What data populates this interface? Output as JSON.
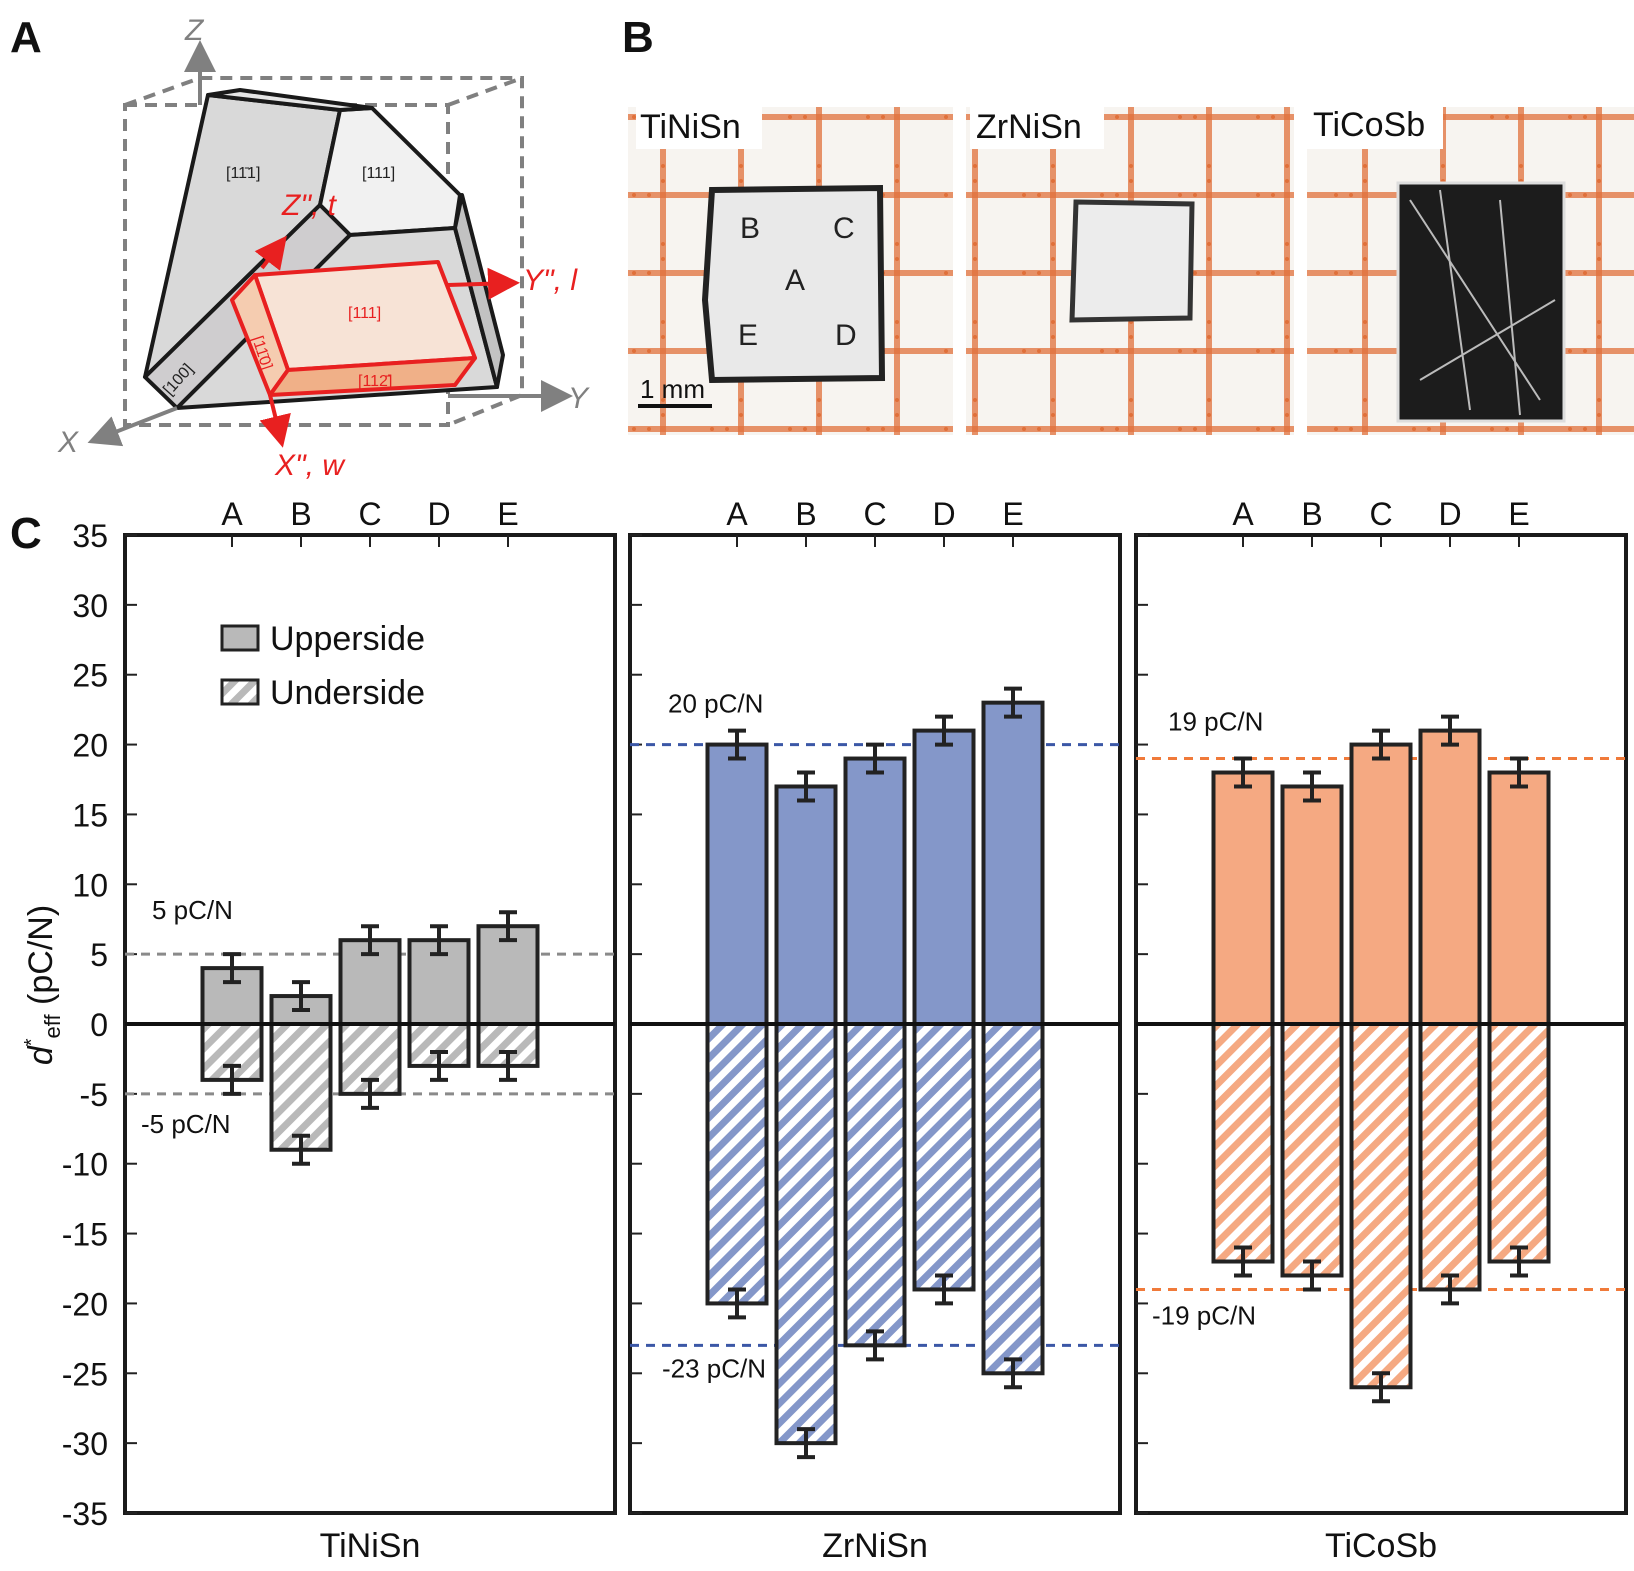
{
  "panels": {
    "a": "A",
    "b": "B",
    "c": "C"
  },
  "panel_a": {
    "axes": {
      "z": "Z",
      "y": "Y",
      "x": "X"
    },
    "rotated_axes": {
      "z": "Z\", t",
      "y": "Y\", l",
      "x": "X\", w"
    },
    "faces": {
      "left": "[11̄1]",
      "right": "[111]",
      "edge": "[100]",
      "sample_top": "[111]",
      "sample_side": "[11̄0]",
      "sample_bottom": "[112̄]"
    }
  },
  "panel_b": {
    "samples": [
      {
        "name": "TiNiSn",
        "points": [
          "B",
          "C",
          "A",
          "E",
          "D"
        ]
      },
      {
        "name": "ZrNiSn"
      },
      {
        "name": "TiCoSb"
      }
    ],
    "scale_bar": "1 mm"
  },
  "chart_data": {
    "type": "bar",
    "ylabel": "d*eff (pC/N)",
    "ylim": [
      -35,
      35
    ],
    "yticks": [
      35,
      30,
      25,
      20,
      15,
      10,
      5,
      0,
      -5,
      -10,
      -15,
      -20,
      -25,
      -30,
      -35
    ],
    "categories": [
      "A",
      "B",
      "C",
      "D",
      "E"
    ],
    "legend": {
      "position": "top-left",
      "entries": [
        "Upperside",
        "Underside"
      ]
    },
    "colors": {
      "TiNiSn": "#b9b9b9",
      "ZrNiSn": "#8497c9",
      "TiCoSb": "#f5a982"
    },
    "line_colors": {
      "TiNiSn": "#8a8a8a",
      "ZrNiSn": "#3b57a6",
      "TiCoSb": "#f07a3a"
    },
    "subplots": [
      {
        "name": "TiNiSn",
        "upperside": [
          4,
          2,
          6,
          6,
          7
        ],
        "underside": [
          -4,
          -9,
          -5,
          -3,
          -3
        ],
        "error": 1,
        "ref_upper": 5,
        "ref_under": -5,
        "ref_upper_label": "5 pC/N",
        "ref_under_label": "-5 pC/N"
      },
      {
        "name": "ZrNiSn",
        "upperside": [
          20,
          17,
          19,
          21,
          23
        ],
        "underside": [
          -20,
          -30,
          -23,
          -19,
          -25
        ],
        "error": 1,
        "ref_upper": 20,
        "ref_under": -23,
        "ref_upper_label": "20 pC/N",
        "ref_under_label": "-23 pC/N"
      },
      {
        "name": "TiCoSb",
        "upperside": [
          18,
          17,
          20,
          21,
          18
        ],
        "underside": [
          -17,
          -18,
          -26,
          -19,
          -17
        ],
        "error": 1,
        "ref_upper": 19,
        "ref_under": -19,
        "ref_upper_label": "19 pC/N",
        "ref_under_label": "-19 pC/N"
      }
    ]
  }
}
